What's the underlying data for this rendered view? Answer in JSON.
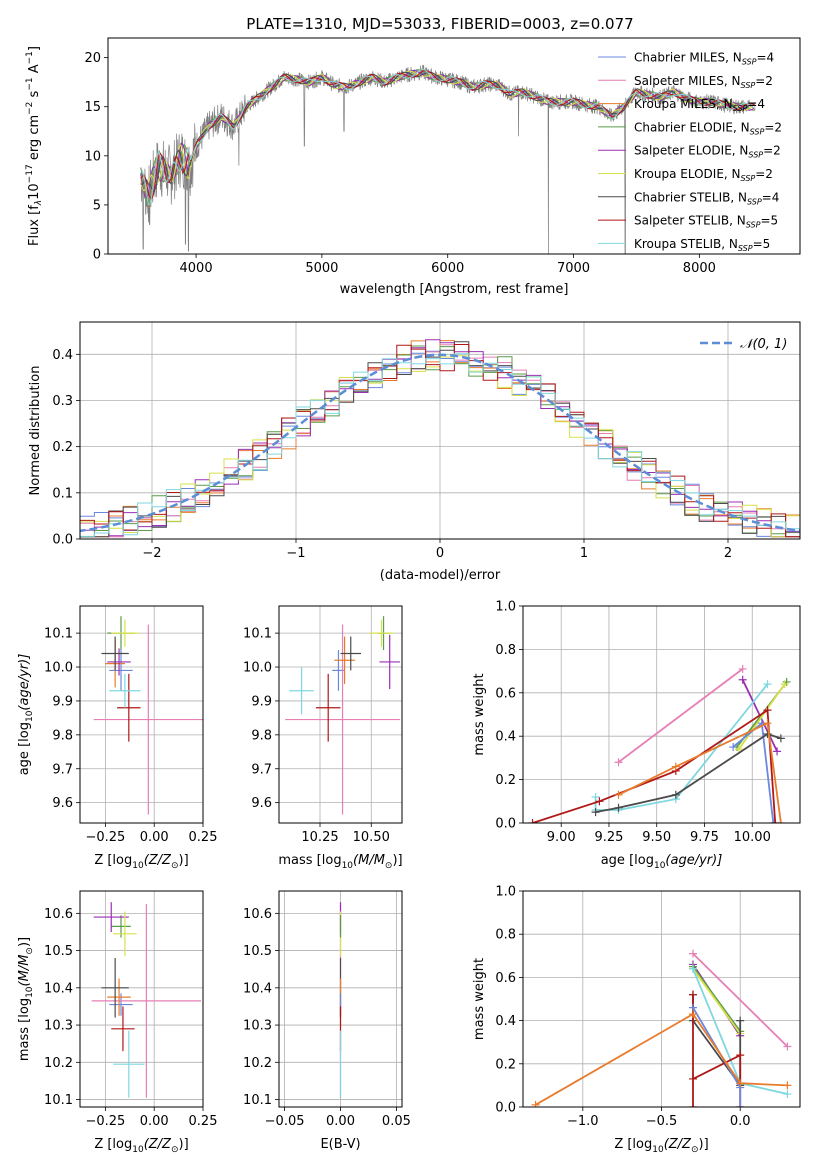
{
  "figure": {
    "title": "PLATE=1310, MJD=53033, FIBERID=0003, z=0.077"
  },
  "series": [
    {
      "key": "chabrier_miles",
      "label_main": "Chabrier MILES, N",
      "label_sub": "SSP",
      "label_tail": "=4",
      "color": "#6b88e0"
    },
    {
      "key": "salpeter_miles",
      "label_main": "Salpeter MILES, N",
      "label_sub": "SSP",
      "label_tail": "=2",
      "color": "#e57fb4"
    },
    {
      "key": "kroupa_miles",
      "label_main": "Kroupa MILES, N",
      "label_sub": "SSP",
      "label_tail": "=4",
      "color": "#e87c2c"
    },
    {
      "key": "chabrier_elodie",
      "label_main": "Chabrier ELODIE, N",
      "label_sub": "SSP",
      "label_tail": "=2",
      "color": "#5a9c4a"
    },
    {
      "key": "salpeter_elodie",
      "label_main": "Salpeter ELODIE, N",
      "label_sub": "SSP",
      "label_tail": "=2",
      "color": "#9b2fb3"
    },
    {
      "key": "kroupa_elodie",
      "label_main": "Kroupa ELODIE, N",
      "label_sub": "SSP",
      "label_tail": "=2",
      "color": "#d6e04a"
    },
    {
      "key": "chabrier_stelib",
      "label_main": "Chabrier STELIB, N",
      "label_sub": "SSP",
      "label_tail": "=4",
      "color": "#4b4b4b"
    },
    {
      "key": "salpeter_stelib",
      "label_main": "Salpeter STELIB, N",
      "label_sub": "SSP",
      "label_tail": "=5",
      "color": "#b01818"
    },
    {
      "key": "kroupa_stelib",
      "label_main": "Kroupa STELIB, N",
      "label_sub": "SSP",
      "label_tail": "=5",
      "color": "#7fd7e0"
    }
  ],
  "chart_data": [
    {
      "id": "spectrum",
      "type": "line",
      "xlabel": "wavelength [Angstrom, rest frame]",
      "ylabel_parts": [
        "Flux [f",
        "λ",
        "10",
        "−17",
        " erg cm",
        "−2",
        " s",
        "−1",
        " A",
        "−1",
        "]"
      ],
      "xlim": [
        3300,
        8800
      ],
      "ylim": [
        0,
        22
      ],
      "xticks": [
        4000,
        5000,
        6000,
        7000,
        8000
      ],
      "yticks": [
        0,
        5,
        10,
        15,
        20
      ],
      "data_continuum": [
        [
          3560,
          8
        ],
        [
          3620,
          6
        ],
        [
          3700,
          9
        ],
        [
          3800,
          8
        ],
        [
          3880,
          10
        ],
        [
          3950,
          9
        ],
        [
          4000,
          11
        ],
        [
          4100,
          13
        ],
        [
          4200,
          14
        ],
        [
          4300,
          13
        ],
        [
          4400,
          15
        ],
        [
          4500,
          16
        ],
        [
          4600,
          17
        ],
        [
          4700,
          18
        ],
        [
          4800,
          17.8
        ],
        [
          4900,
          17.5
        ],
        [
          5000,
          18
        ],
        [
          5100,
          17.2
        ],
        [
          5200,
          17
        ],
        [
          5300,
          17.5
        ],
        [
          5400,
          18
        ],
        [
          5500,
          17.5
        ],
        [
          5600,
          18
        ],
        [
          5700,
          18.3
        ],
        [
          5800,
          18.5
        ],
        [
          5900,
          18
        ],
        [
          6000,
          17.8
        ],
        [
          6100,
          17.5
        ],
        [
          6200,
          17
        ],
        [
          6300,
          17.3
        ],
        [
          6400,
          17.2
        ],
        [
          6500,
          16.3
        ],
        [
          6600,
          16.5
        ],
        [
          6700,
          16
        ],
        [
          6800,
          15.5
        ],
        [
          6900,
          15.5
        ],
        [
          7000,
          15.5
        ],
        [
          7100,
          15.2
        ],
        [
          7200,
          15
        ],
        [
          7300,
          14
        ],
        [
          7400,
          15
        ],
        [
          7500,
          16.5
        ],
        [
          7600,
          16.2
        ],
        [
          7700,
          16
        ],
        [
          7800,
          16.5
        ],
        [
          7900,
          15.8
        ],
        [
          8000,
          15.5
        ],
        [
          8100,
          15.5
        ],
        [
          8200,
          15.2
        ],
        [
          8300,
          15
        ],
        [
          8400,
          15
        ]
      ],
      "data_dips": [
        [
          3580,
          0.5
        ],
        [
          3630,
          3
        ],
        [
          3915,
          1
        ],
        [
          3940,
          0.3
        ],
        [
          4340,
          9
        ],
        [
          4860,
          11
        ],
        [
          5175,
          12.5
        ],
        [
          6563,
          12
        ],
        [
          6800,
          0
        ],
        [
          7410,
          0
        ]
      ],
      "models_end": 8450
    },
    {
      "id": "residual_histogram",
      "type": "histogram",
      "xlabel": "(data-model)/error",
      "ylabel": "Normed distribution",
      "xlim": [
        -2.5,
        2.5
      ],
      "ylim": [
        0,
        0.47
      ],
      "xticks": [
        -2,
        -1,
        0,
        1,
        2
      ],
      "yticks": [
        0.0,
        0.1,
        0.2,
        0.3,
        0.4
      ],
      "bin_width": 0.1,
      "legend": "𝒩(0, 1)",
      "gaussian_color": "#5b8ed6"
    },
    {
      "id": "age_vs_Z",
      "type": "errorbar",
      "xlabel": "Z [log",
      "xlabel_sub": "10",
      "xlabel_tail": "(Z/Z",
      "xlabel_sun": "⊙",
      "xlabel_end": ")]",
      "ylabel": "age  [log",
      "ylabel_sub": "10",
      "ylabel_tail": "(age/yr)]",
      "xlim": [
        -0.38,
        0.25
      ],
      "ylim": [
        9.54,
        10.18
      ],
      "xticks": [
        -0.25,
        0.0,
        0.25
      ],
      "yticks": [
        9.6,
        9.7,
        9.8,
        9.9,
        10.0,
        10.1
      ],
      "points": [
        {
          "s": 0,
          "x": -0.17,
          "y": 9.99,
          "xe": 0.06,
          "ye": 0.06
        },
        {
          "s": 1,
          "x": -0.03,
          "y": 9.845,
          "xe": 0.28,
          "ye": 0.28
        },
        {
          "s": 2,
          "x": -0.2,
          "y": 10.01,
          "xe": 0.05,
          "ye": 0.07
        },
        {
          "s": 3,
          "x": -0.17,
          "y": 10.1,
          "xe": 0.07,
          "ye": 0.05
        },
        {
          "s": 4,
          "x": -0.18,
          "y": 10.015,
          "xe": 0.06,
          "ye": 0.04
        },
        {
          "s": 5,
          "x": -0.15,
          "y": 10.1,
          "xe": 0.07,
          "ye": 0.04
        },
        {
          "s": 6,
          "x": -0.2,
          "y": 10.04,
          "xe": 0.07,
          "ye": 0.05
        },
        {
          "s": 7,
          "x": -0.13,
          "y": 9.88,
          "xe": 0.06,
          "ye": 0.1
        },
        {
          "s": 8,
          "x": -0.15,
          "y": 9.93,
          "xe": 0.08,
          "ye": 0.05
        }
      ]
    },
    {
      "id": "age_vs_mass",
      "type": "errorbar",
      "xlabel": "mass [log",
      "xlabel_sub": "10",
      "xlabel_tail": "(M/M",
      "xlabel_sun": "⊙",
      "xlabel_end": ")]",
      "xlim": [
        10.05,
        10.65
      ],
      "ylim": [
        9.54,
        10.18
      ],
      "xticks": [
        10.25,
        10.5
      ],
      "xticklabels": [
        "10.25",
        "10.50"
      ],
      "yticks": [
        9.6,
        9.7,
        9.8,
        9.9,
        10.0,
        10.1
      ],
      "points": [
        {
          "s": 0,
          "x": 10.34,
          "y": 9.99,
          "xe": 0.03,
          "ye": 0.06
        },
        {
          "s": 1,
          "x": 10.36,
          "y": 9.845,
          "xe": 0.28,
          "ye": 0.28
        },
        {
          "s": 2,
          "x": 10.37,
          "y": 10.02,
          "xe": 0.05,
          "ye": 0.07
        },
        {
          "s": 3,
          "x": 10.56,
          "y": 10.1,
          "xe": 0.03,
          "ye": 0.05
        },
        {
          "s": 4,
          "x": 10.59,
          "y": 10.015,
          "xe": 0.05,
          "ye": 0.08
        },
        {
          "s": 5,
          "x": 10.55,
          "y": 10.1,
          "xe": 0.06,
          "ye": 0.04
        },
        {
          "s": 6,
          "x": 10.4,
          "y": 10.04,
          "xe": 0.05,
          "ye": 0.05
        },
        {
          "s": 7,
          "x": 10.29,
          "y": 9.88,
          "xe": 0.06,
          "ye": 0.1
        },
        {
          "s": 8,
          "x": 10.16,
          "y": 9.93,
          "xe": 0.06,
          "ye": 0.07
        }
      ]
    },
    {
      "id": "weight_vs_age",
      "type": "line",
      "xlabel": "age  [log",
      "xlabel_sub": "10",
      "xlabel_tail": "(age/yr)]",
      "ylabel": "mass weight",
      "xlim": [
        8.8,
        10.25
      ],
      "ylim": [
        0,
        1
      ],
      "xticks": [
        9.0,
        9.25,
        9.5,
        9.75,
        10.0
      ],
      "xticklabels": [
        "9.00",
        "9.25",
        "9.50",
        "9.75",
        "10.00"
      ],
      "yticks": [
        0.0,
        0.2,
        0.4,
        0.6,
        0.8,
        1.0
      ],
      "yticklabels": [
        "0.0",
        "0.2",
        "0.4",
        "0.6",
        "0.8",
        "1.0"
      ],
      "lines": [
        {
          "s": 1,
          "pts": [
            [
              9.3,
              0.28
            ],
            [
              9.95,
              0.71
            ]
          ]
        },
        {
          "s": 4,
          "pts": [
            [
              9.95,
              0.66
            ],
            [
              10.13,
              0.33
            ]
          ]
        },
        {
          "s": 3,
          "pts": [
            [
              9.92,
              0.35
            ],
            [
              10.18,
              0.65
            ]
          ]
        },
        {
          "s": 5,
          "pts": [
            [
              9.93,
              0.34
            ],
            [
              10.17,
              0.64
            ]
          ]
        },
        {
          "s": 0,
          "pts": [
            [
              9.9,
              0.35
            ],
            [
              10.05,
              0.46
            ],
            [
              10.11,
              0.0
            ]
          ]
        },
        {
          "s": 8,
          "pts": [
            [
              9.18,
              0.12
            ],
            [
              9.18,
              0.06
            ],
            [
              9.3,
              0.06
            ],
            [
              9.6,
              0.11
            ],
            [
              10.08,
              0.64
            ]
          ]
        },
        {
          "s": 6,
          "pts": [
            [
              9.18,
              0.05
            ],
            [
              9.3,
              0.07
            ],
            [
              9.6,
              0.13
            ],
            [
              10.08,
              0.41
            ],
            [
              10.15,
              0.39
            ]
          ]
        },
        {
          "s": 7,
          "pts": [
            [
              8.85,
              0.0
            ],
            [
              9.2,
              0.1
            ],
            [
              9.6,
              0.24
            ],
            [
              10.08,
              0.52
            ],
            [
              10.12,
              0.0
            ]
          ]
        },
        {
          "s": 2,
          "pts": [
            [
              9.3,
              0.13
            ],
            [
              9.6,
              0.26
            ],
            [
              10.08,
              0.46
            ],
            [
              10.15,
              0.0
            ]
          ]
        }
      ]
    },
    {
      "id": "mass_vs_Z",
      "type": "errorbar",
      "xlabel": "Z [log",
      "xlabel_sub": "10",
      "xlabel_tail": "(Z/Z",
      "xlabel_sun": "⊙",
      "xlabel_end": ")]",
      "ylabel": "mass [log",
      "ylabel_sub": "10",
      "ylabel_tail": "(M/M",
      "ylabel_sun": "⊙",
      "ylabel_end": ")]",
      "xlim": [
        -0.38,
        0.25
      ],
      "ylim": [
        10.08,
        10.66
      ],
      "xticks": [
        -0.25,
        0.0,
        0.25
      ],
      "yticks": [
        10.1,
        10.2,
        10.3,
        10.4,
        10.5,
        10.6
      ],
      "points": [
        {
          "s": 0,
          "x": -0.17,
          "y": 10.355,
          "xe": 0.06,
          "ye": 0.03
        },
        {
          "s": 1,
          "x": -0.04,
          "y": 10.365,
          "xe": 0.28,
          "ye": 0.26
        },
        {
          "s": 2,
          "x": -0.18,
          "y": 10.375,
          "xe": 0.06,
          "ye": 0.05
        },
        {
          "s": 3,
          "x": -0.17,
          "y": 10.565,
          "xe": 0.05,
          "ye": 0.03
        },
        {
          "s": 4,
          "x": -0.22,
          "y": 10.59,
          "xe": 0.09,
          "ye": 0.04
        },
        {
          "s": 5,
          "x": -0.15,
          "y": 10.545,
          "xe": 0.06,
          "ye": 0.06
        },
        {
          "s": 6,
          "x": -0.2,
          "y": 10.4,
          "xe": 0.07,
          "ye": 0.08
        },
        {
          "s": 7,
          "x": -0.16,
          "y": 10.29,
          "xe": 0.06,
          "ye": 0.06
        },
        {
          "s": 8,
          "x": -0.13,
          "y": 10.195,
          "xe": 0.08,
          "ye": 0.09
        }
      ]
    },
    {
      "id": "mass_vs_ebv",
      "type": "errorbar",
      "xlabel": "E(B-V)",
      "xlim": [
        -0.055,
        0.055
      ],
      "ylim": [
        10.08,
        10.66
      ],
      "xticks": [
        -0.05,
        0.0,
        0.05
      ],
      "xticklabels": [
        "−0.05",
        "0.00",
        "0.05"
      ],
      "yticks": [
        10.1,
        10.2,
        10.3,
        10.4,
        10.5,
        10.6
      ],
      "points": [
        {
          "s": 1,
          "x": 0,
          "y": 10.365,
          "xe": 0,
          "ye": 0.26
        },
        {
          "s": 4,
          "x": 0,
          "y": 10.59,
          "xe": 0,
          "ye": 0.04
        },
        {
          "s": 5,
          "x": 0,
          "y": 10.545,
          "xe": 0,
          "ye": 0.06
        },
        {
          "s": 3,
          "x": 0,
          "y": 10.565,
          "xe": 0,
          "ye": 0.03
        },
        {
          "s": 6,
          "x": 0,
          "y": 10.4,
          "xe": 0,
          "ye": 0.08
        },
        {
          "s": 2,
          "x": 0,
          "y": 10.375,
          "xe": 0,
          "ye": 0.05
        },
        {
          "s": 0,
          "x": 0,
          "y": 10.355,
          "xe": 0,
          "ye": 0.03
        },
        {
          "s": 7,
          "x": 0,
          "y": 10.29,
          "xe": 0,
          "ye": 0.06
        },
        {
          "s": 8,
          "x": 0,
          "y": 10.195,
          "xe": 0,
          "ye": 0.09
        }
      ]
    },
    {
      "id": "weight_vs_Z",
      "type": "line",
      "xlabel": "Z [log",
      "xlabel_sub": "10",
      "xlabel_tail": "(Z/Z",
      "xlabel_sun": "⊙",
      "xlabel_end": ")]",
      "ylabel": "mass weight",
      "xlim": [
        -1.38,
        0.38
      ],
      "ylim": [
        0,
        1
      ],
      "xticks": [
        -1.0,
        -0.5,
        0.0
      ],
      "xticklabels": [
        "−1.0",
        "−0.5",
        "0.0"
      ],
      "yticks": [
        0.0,
        0.2,
        0.4,
        0.6,
        0.8,
        1.0
      ],
      "yticklabels": [
        "0.0",
        "0.2",
        "0.4",
        "0.6",
        "0.8",
        "1.0"
      ],
      "lines": [
        {
          "s": 1,
          "pts": [
            [
              -0.3,
              0.71
            ],
            [
              0.3,
              0.28
            ]
          ]
        },
        {
          "s": 4,
          "pts": [
            [
              -0.3,
              0.66
            ],
            [
              0.0,
              0.33
            ]
          ]
        },
        {
          "s": 3,
          "pts": [
            [
              -0.3,
              0.65
            ],
            [
              0.0,
              0.35
            ]
          ]
        },
        {
          "s": 5,
          "pts": [
            [
              -0.3,
              0.64
            ],
            [
              0.0,
              0.34
            ]
          ]
        },
        {
          "s": 8,
          "pts": [
            [
              -0.3,
              0.64
            ],
            [
              0.0,
              0.11
            ],
            [
              0.3,
              0.06
            ]
          ]
        },
        {
          "s": 6,
          "pts": [
            [
              -0.3,
              0.52
            ],
            [
              -0.3,
              0.4
            ],
            [
              0.0,
              0.1
            ],
            [
              0.0,
              0.4
            ]
          ]
        },
        {
          "s": 7,
          "pts": [
            [
              -0.3,
              0.52
            ],
            [
              -0.3,
              0.0
            ],
            [
              -0.3,
              0.13
            ],
            [
              0.0,
              0.24
            ],
            [
              0.0,
              0.0
            ]
          ]
        },
        {
          "s": 0,
          "pts": [
            [
              -0.3,
              0.46
            ],
            [
              0.0,
              0.09
            ],
            [
              0.0,
              0.0
            ]
          ]
        },
        {
          "s": 2,
          "pts": [
            [
              -1.3,
              0.01
            ],
            [
              -0.3,
              0.43
            ],
            [
              0.0,
              0.11
            ],
            [
              0.3,
              0.1
            ]
          ]
        }
      ]
    }
  ]
}
